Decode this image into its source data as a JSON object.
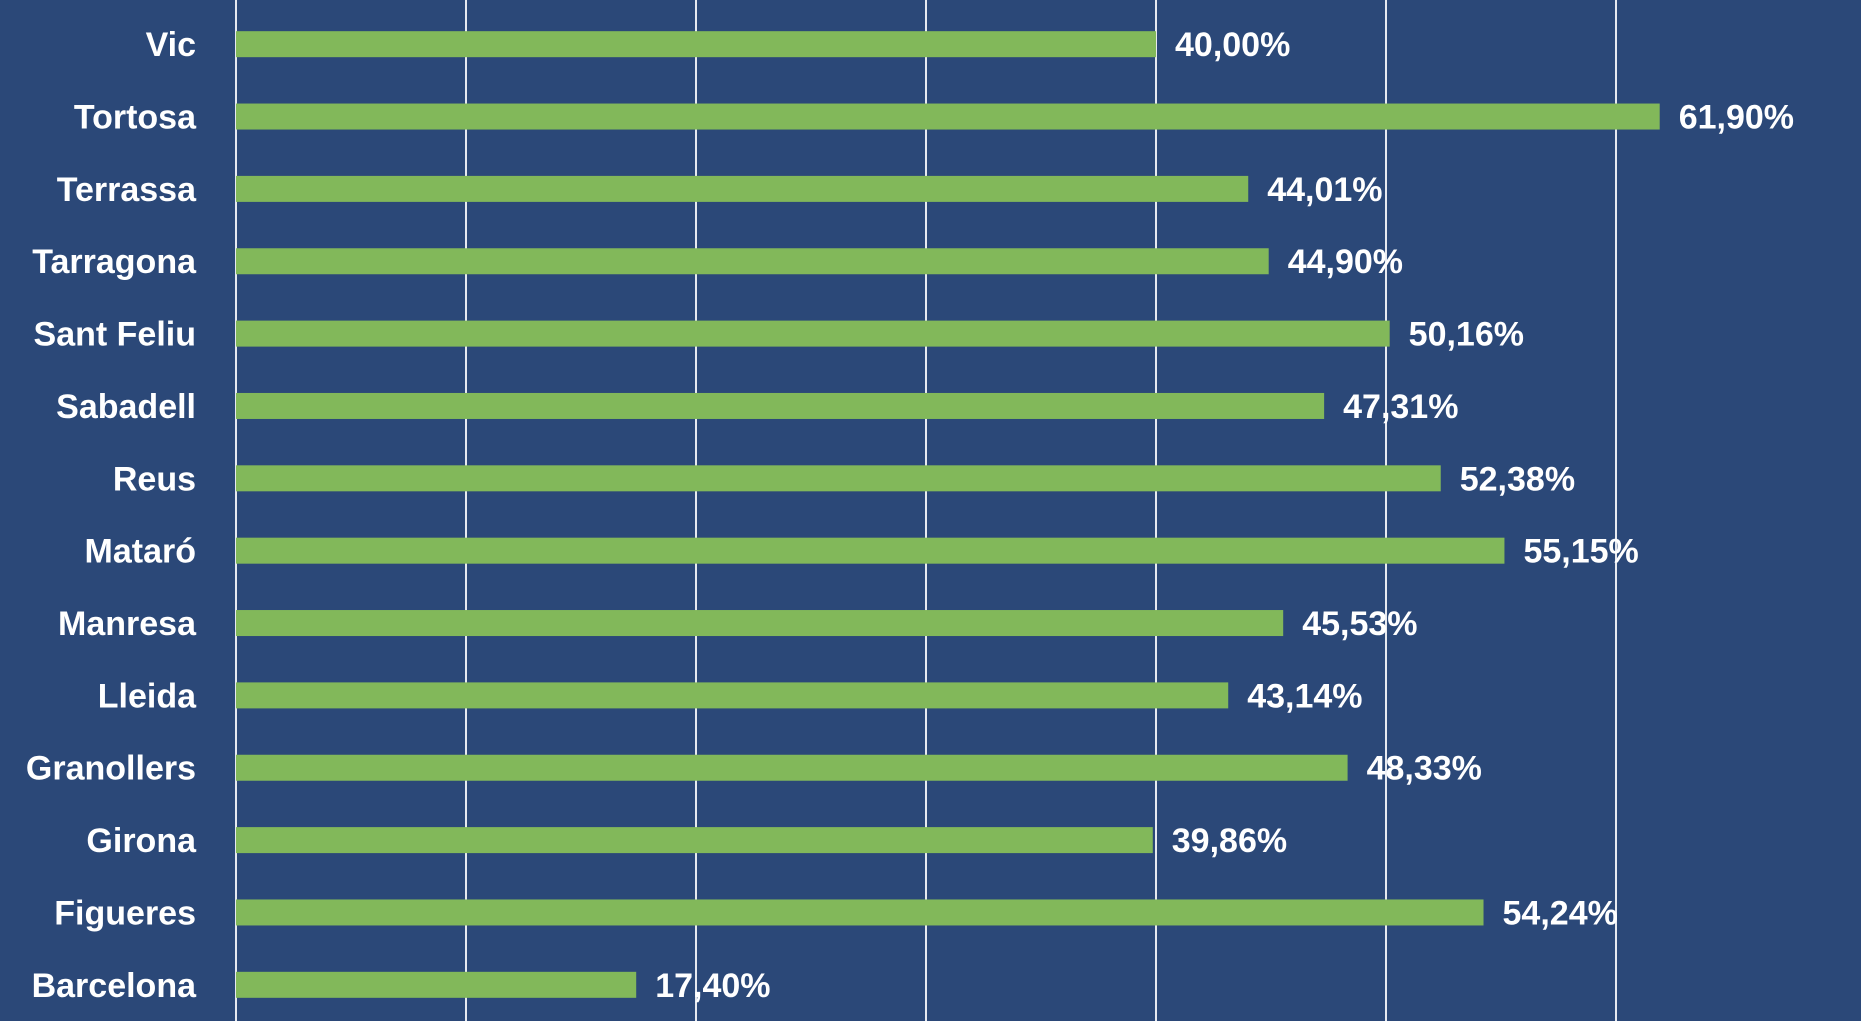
{
  "chart_data": {
    "type": "bar",
    "orientation": "horizontal",
    "categories": [
      "Vic",
      "Tortosa",
      "Terrassa",
      "Tarragona",
      "Sant Feliu",
      "Sabadell",
      "Reus",
      "Mataró",
      "Manresa",
      "Lleida",
      "Granollers",
      "Girona",
      "Figueres",
      "Barcelona"
    ],
    "values": [
      40.0,
      61.9,
      44.01,
      44.9,
      50.16,
      47.31,
      52.38,
      55.15,
      45.53,
      43.14,
      48.33,
      39.86,
      54.24,
      17.4
    ],
    "value_labels": [
      "40,00%",
      "61,90%",
      "44,01%",
      "44,90%",
      "50,16%",
      "47,31%",
      "52,38%",
      "55,15%",
      "45,53%",
      "43,14%",
      "48,33%",
      "39,86%",
      "54,24%",
      "17,40%"
    ],
    "color": "#82b85a",
    "xlim": [
      0,
      70
    ],
    "xticks": [
      0,
      10,
      20,
      30,
      40,
      50,
      60
    ],
    "grid": true
  }
}
